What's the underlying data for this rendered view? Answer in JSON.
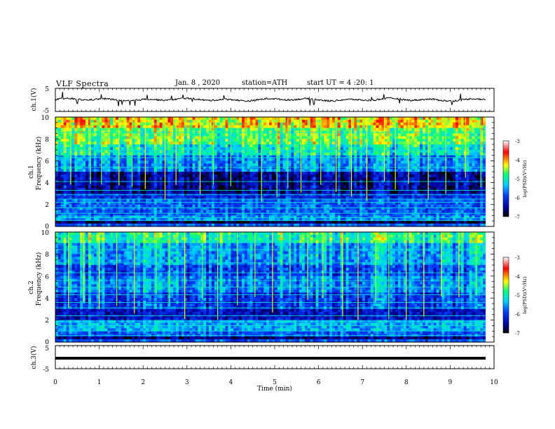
{
  "header": {
    "title": "VLF Spectra",
    "date": "Jan. 8 , 2020",
    "station": "station=ATH",
    "start_ut": "start UT = 4 :20: 1"
  },
  "colors": {
    "background": "#ffffff",
    "axes": "#000000",
    "colormap": [
      "#000000",
      "#0000a0",
      "#0040ff",
      "#00d0ff",
      "#00ff80",
      "#ffff00",
      "#ff0000",
      "#ffffff"
    ]
  },
  "chart_data": [
    {
      "type": "line",
      "panel": "ch1-voltage",
      "ylabel": "ch.1(V)",
      "ylim": [
        -5,
        5
      ],
      "yticks": [
        "5",
        "-5"
      ],
      "x_unit": "min",
      "baseline_volts": 0.1,
      "description_values": "waveform oscillating around ~0 V"
    },
    {
      "type": "heatmap",
      "panel": "ch1-spectrogram",
      "ylabel_channel": "ch.1",
      "ylabel": "Frequency (kHz)",
      "ylim": [
        0,
        10
      ],
      "yticks": [
        "10",
        "8",
        "6",
        "4",
        "2",
        "0"
      ],
      "colorbar": {
        "label": "log(PSD)(V²/Hz)",
        "range": [
          -7,
          -3
        ],
        "ticks": [
          "-3",
          "-4",
          "-5",
          "-6",
          "-7"
        ]
      },
      "band_intensity": [
        {
          "from": 9.0,
          "to": 10.0,
          "level": 0.7
        },
        {
          "from": 7.5,
          "to": 9.0,
          "level": 0.58
        },
        {
          "from": 6.5,
          "to": 7.5,
          "level": 0.48
        },
        {
          "from": 5.0,
          "to": 6.5,
          "level": 0.35
        },
        {
          "from": 3.0,
          "to": 5.0,
          "level": 0.12
        },
        {
          "from": 2.5,
          "to": 3.0,
          "level": 0.22
        },
        {
          "from": 1.0,
          "to": 2.5,
          "level": 0.3
        },
        {
          "from": 0.5,
          "to": 1.0,
          "level": 0.36
        },
        {
          "from": 0.25,
          "to": 0.5,
          "level": 0.05
        },
        {
          "from": 0.0,
          "to": 0.25,
          "level": 0.3
        }
      ],
      "lines_khz": [
        0.55,
        0.8,
        1.2,
        1.7,
        2.2,
        2.5,
        2.9,
        3.3,
        4.1,
        5.4,
        6.3,
        6.9,
        8.6
      ],
      "sferics_min": [
        0.35,
        0.8,
        1.05,
        1.45,
        1.75,
        2.05,
        2.5,
        2.75,
        3.3,
        3.6,
        4.0,
        4.7,
        5.05,
        5.3,
        5.6,
        6.05,
        6.4,
        6.75,
        7.1,
        7.5,
        7.75,
        8.05,
        8.5,
        8.9,
        9.35,
        9.7
      ]
    },
    {
      "type": "heatmap",
      "panel": "ch2-spectrogram",
      "ylabel_channel": "ch.2",
      "ylabel": "Frequency (kHz)",
      "ylim": [
        0,
        10
      ],
      "yticks": [
        "10",
        "8",
        "6",
        "4",
        "2",
        "0"
      ],
      "colorbar": {
        "label": "log(PSD)(V²/Hz)",
        "range": [
          -7,
          -3
        ],
        "ticks": [
          "-3",
          "-4",
          "-5",
          "-6",
          "-7"
        ]
      },
      "band_intensity": [
        {
          "from": 9.0,
          "to": 10.0,
          "level": 0.55
        },
        {
          "from": 7.0,
          "to": 9.0,
          "level": 0.4
        },
        {
          "from": 6.0,
          "to": 7.0,
          "level": 0.3
        },
        {
          "from": 4.5,
          "to": 6.0,
          "level": 0.38
        },
        {
          "from": 3.0,
          "to": 4.5,
          "level": 0.28
        },
        {
          "from": 2.0,
          "to": 3.0,
          "level": 0.18
        },
        {
          "from": 1.0,
          "to": 2.0,
          "level": 0.4
        },
        {
          "from": 0.5,
          "to": 1.0,
          "level": 0.3
        },
        {
          "from": 0.25,
          "to": 0.5,
          "level": 0.1
        },
        {
          "from": 0.0,
          "to": 0.25,
          "level": 0.3
        }
      ],
      "lines_khz": [
        0.6,
        1.0,
        1.5,
        1.9,
        2.4,
        3.1,
        3.6,
        4.3,
        5.0,
        5.6,
        6.3,
        7.2,
        8.4
      ],
      "sferics_min": [
        0.3,
        0.65,
        1.0,
        1.4,
        1.8,
        2.3,
        2.6,
        2.95,
        3.35,
        3.7,
        4.15,
        4.55,
        4.95,
        5.35,
        5.75,
        6.1,
        6.55,
        6.9,
        7.3,
        7.6,
        8.0,
        8.4,
        8.8,
        9.2,
        9.6
      ]
    },
    {
      "type": "line",
      "panel": "ch3-voltage",
      "ylabel": "ch.3(V)",
      "ylim": [
        -5,
        5
      ],
      "yticks": [
        "5",
        "-5"
      ],
      "baseline_volts": -0.5,
      "xlabel": "Time (min)",
      "xlim": [
        0,
        10
      ],
      "xticks": [
        "0",
        "1",
        "2",
        "3",
        "4",
        "5",
        "6",
        "7",
        "8",
        "9",
        "10"
      ]
    }
  ]
}
